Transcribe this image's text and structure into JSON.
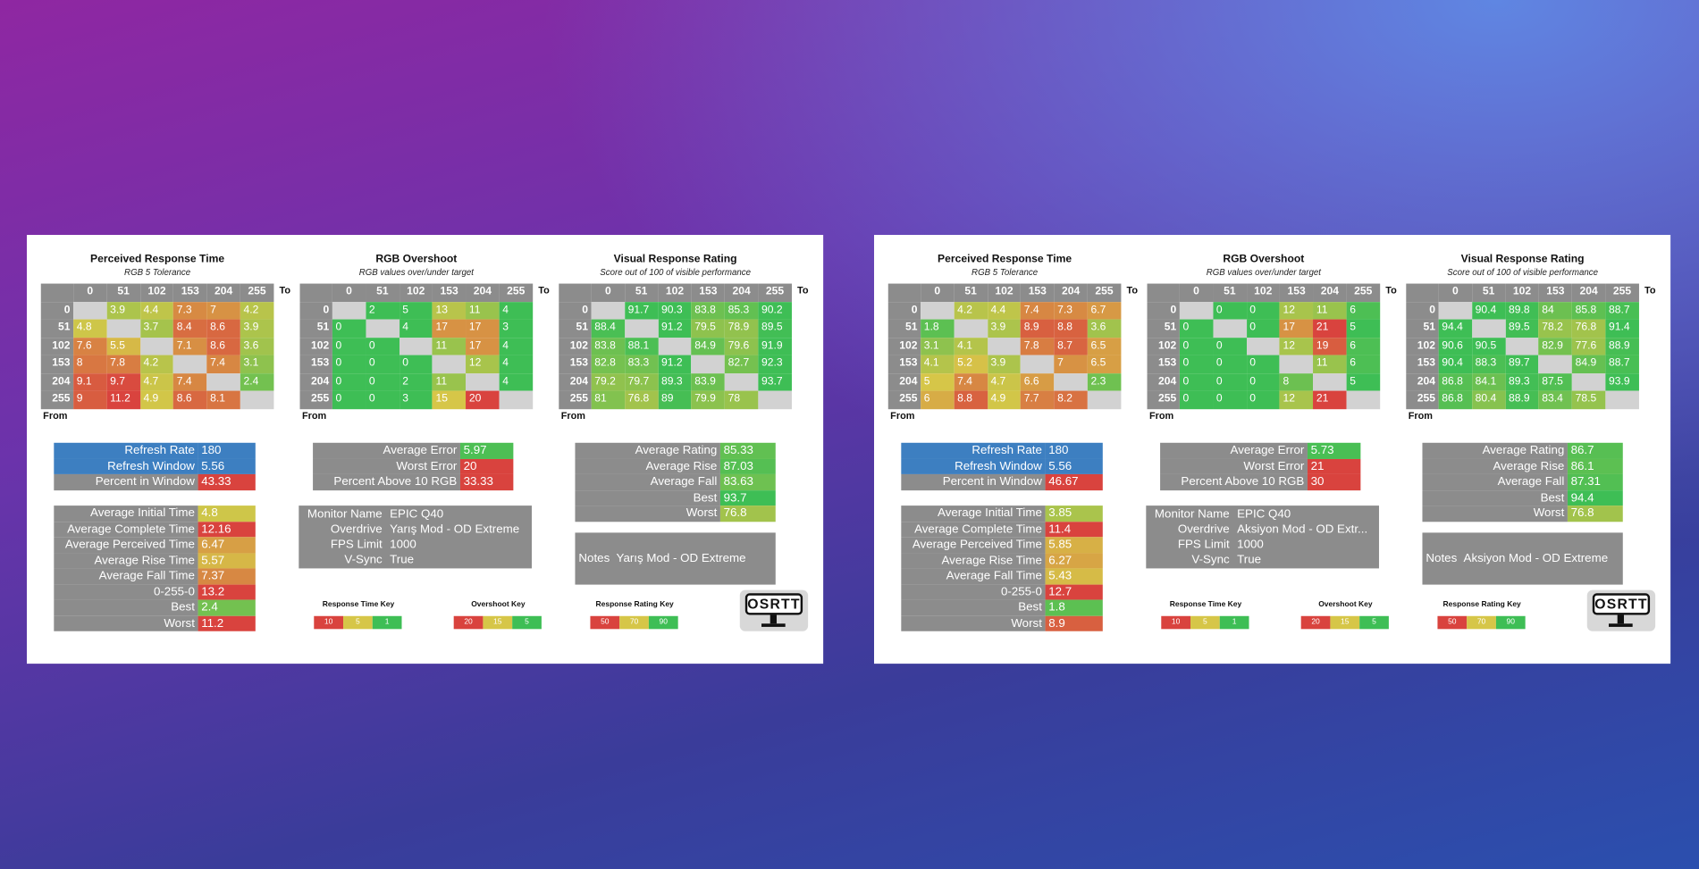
{
  "panels": [
    {
      "tables": [
        {
          "title": "Perceived Response Time",
          "subtitle": "RGB 5 Tolerance",
          "columns": [
            0,
            51,
            102,
            153,
            204,
            255
          ],
          "rows": [
            0,
            51,
            102,
            153,
            204,
            255
          ],
          "to": "To",
          "from": "From",
          "cells": [
            [
              null,
              3.9,
              4.4,
              7.3,
              7,
              4.2
            ],
            [
              4.8,
              null,
              3.7,
              8.4,
              8.6,
              3.9
            ],
            [
              7.6,
              5.5,
              null,
              7.1,
              8.6,
              3.6
            ],
            [
              8,
              7.8,
              4.2,
              null,
              7.4,
              3.1
            ],
            [
              9.1,
              9.7,
              4.7,
              7.4,
              null,
              2.4
            ],
            [
              9,
              11.2,
              4.9,
              8.6,
              8.1,
              null
            ]
          ]
        },
        {
          "title": "RGB Overshoot",
          "subtitle": "RGB values over/under target",
          "columns": [
            0,
            51,
            102,
            153,
            204,
            255
          ],
          "rows": [
            0,
            51,
            102,
            153,
            204,
            255
          ],
          "to": "To",
          "from": "From",
          "cells": [
            [
              null,
              2,
              5,
              13,
              11,
              4
            ],
            [
              0,
              null,
              4,
              17,
              17,
              3
            ],
            [
              0,
              0,
              null,
              11,
              17,
              4
            ],
            [
              0,
              0,
              0,
              null,
              12,
              4
            ],
            [
              0,
              0,
              2,
              11,
              null,
              4
            ],
            [
              0,
              0,
              3,
              15,
              20,
              null
            ]
          ]
        },
        {
          "title": "Visual Response Rating",
          "subtitle": "Score out of 100 of visible performance",
          "columns": [
            0,
            51,
            102,
            153,
            204,
            255
          ],
          "rows": [
            0,
            51,
            102,
            153,
            204,
            255
          ],
          "to": "To",
          "from": "From",
          "cells": [
            [
              null,
              91.7,
              90.3,
              83.8,
              85.3,
              90.2
            ],
            [
              88.4,
              null,
              91.2,
              79.5,
              78.9,
              89.5
            ],
            [
              83.8,
              88.1,
              null,
              84.9,
              79.6,
              91.9
            ],
            [
              82.8,
              83.3,
              91.2,
              null,
              82.7,
              92.3
            ],
            [
              79.2,
              79.7,
              89.3,
              83.9,
              null,
              93.7
            ],
            [
              81,
              76.8,
              89,
              79.9,
              78,
              null
            ]
          ]
        }
      ],
      "refresh": [
        {
          "label": "Refresh Rate",
          "value": 180
        },
        {
          "label": "Refresh Window",
          "value": 5.56
        },
        {
          "label": "Percent in Window",
          "value": 43.33
        }
      ],
      "error": [
        {
          "label": "Average Error",
          "value": 5.97
        },
        {
          "label": "Worst Error",
          "value": 20
        },
        {
          "label": "Percent Above 10 RGB",
          "value": 33.33
        }
      ],
      "rating": [
        {
          "label": "Average Rating",
          "value": 85.33
        },
        {
          "label": "Average Rise",
          "value": 87.03
        },
        {
          "label": "Average Fall",
          "value": 83.63
        },
        {
          "label": "Best",
          "value": 93.7
        },
        {
          "label": "Worst",
          "value": 76.8
        }
      ],
      "times": [
        {
          "label": "Average Initial Time",
          "value": 4.8
        },
        {
          "label": "Average Complete Time",
          "value": 12.16
        },
        {
          "label": "Average Perceived Time",
          "value": 6.47
        },
        {
          "label": "Average Rise Time",
          "value": 5.57
        },
        {
          "label": "Average Fall Time",
          "value": 7.37
        },
        {
          "label": "0-255-0",
          "value": 13.2
        },
        {
          "label": "Best",
          "value": 2.4
        },
        {
          "label": "Worst",
          "value": 11.2
        }
      ],
      "monitor": [
        {
          "label": "Monitor Name",
          "value": "EPIC Q40"
        },
        {
          "label": "Overdrive",
          "value": "Yarış Mod - OD Extreme"
        },
        {
          "label": "FPS Limit",
          "value": 1000
        },
        {
          "label": "V-Sync",
          "value": "True"
        }
      ],
      "notes": {
        "label": "Notes",
        "value": "Yarış Mod - OD Extreme"
      },
      "keys": [
        {
          "title": "Response Time Key",
          "values": [
            10,
            5,
            1
          ]
        },
        {
          "title": "Overshoot Key",
          "values": [
            20,
            15,
            5
          ]
        },
        {
          "title": "Response Rating Key",
          "values": [
            50,
            70,
            90
          ]
        }
      ],
      "logo": "OSRTT"
    },
    {
      "tables": [
        {
          "title": "Perceived Response Time",
          "subtitle": "RGB 5 Tolerance",
          "columns": [
            0,
            51,
            102,
            153,
            204,
            255
          ],
          "rows": [
            0,
            51,
            102,
            153,
            204,
            255
          ],
          "to": "To",
          "from": "From",
          "cells": [
            [
              null,
              4.2,
              4.4,
              7.4,
              7.3,
              6.7
            ],
            [
              1.8,
              null,
              3.9,
              8.9,
              8.8,
              3.6
            ],
            [
              3.1,
              4.1,
              null,
              7.8,
              8.7,
              6.5
            ],
            [
              4.1,
              5.2,
              3.9,
              null,
              7,
              6.5
            ],
            [
              5,
              7.4,
              4.7,
              6.6,
              null,
              2.3
            ],
            [
              6,
              8.8,
              4.9,
              7.7,
              8.2,
              null
            ]
          ]
        },
        {
          "title": "RGB Overshoot",
          "subtitle": "RGB values over/under target",
          "columns": [
            0,
            51,
            102,
            153,
            204,
            255
          ],
          "rows": [
            0,
            51,
            102,
            153,
            204,
            255
          ],
          "to": "To",
          "from": "From",
          "cells": [
            [
              null,
              0,
              0,
              12,
              11,
              6
            ],
            [
              0,
              null,
              0,
              17,
              21,
              5
            ],
            [
              0,
              0,
              null,
              12,
              19,
              6
            ],
            [
              0,
              0,
              0,
              null,
              11,
              6
            ],
            [
              0,
              0,
              0,
              8,
              null,
              5
            ],
            [
              0,
              0,
              0,
              12,
              21,
              null
            ]
          ]
        },
        {
          "title": "Visual Response Rating",
          "subtitle": "Score out of 100 of visible performance",
          "columns": [
            0,
            51,
            102,
            153,
            204,
            255
          ],
          "rows": [
            0,
            51,
            102,
            153,
            204,
            255
          ],
          "to": "To",
          "from": "From",
          "cells": [
            [
              null,
              90.4,
              89.8,
              84,
              85.8,
              88.7
            ],
            [
              94.4,
              null,
              89.5,
              78.2,
              76.8,
              91.4
            ],
            [
              90.6,
              90.5,
              null,
              82.9,
              77.6,
              88.9
            ],
            [
              90.4,
              88.3,
              89.7,
              null,
              84.9,
              88.7
            ],
            [
              86.8,
              84.1,
              89.3,
              87.5,
              null,
              93.9
            ],
            [
              86.8,
              80.4,
              88.9,
              83.4,
              78.5,
              null
            ]
          ]
        }
      ],
      "refresh": [
        {
          "label": "Refresh Rate",
          "value": 180
        },
        {
          "label": "Refresh Window",
          "value": 5.56
        },
        {
          "label": "Percent in Window",
          "value": 46.67
        }
      ],
      "error": [
        {
          "label": "Average Error",
          "value": 5.73
        },
        {
          "label": "Worst Error",
          "value": 21
        },
        {
          "label": "Percent Above 10 RGB",
          "value": 30
        }
      ],
      "rating": [
        {
          "label": "Average Rating",
          "value": 86.7
        },
        {
          "label": "Average Rise",
          "value": 86.1
        },
        {
          "label": "Average Fall",
          "value": 87.31
        },
        {
          "label": "Best",
          "value": 94.4
        },
        {
          "label": "Worst",
          "value": 76.8
        }
      ],
      "times": [
        {
          "label": "Average Initial Time",
          "value": 3.85
        },
        {
          "label": "Average Complete Time",
          "value": 11.4
        },
        {
          "label": "Average Perceived Time",
          "value": 5.85
        },
        {
          "label": "Average Rise Time",
          "value": 6.27
        },
        {
          "label": "Average Fall Time",
          "value": 5.43
        },
        {
          "label": "0-255-0",
          "value": 12.7
        },
        {
          "label": "Best",
          "value": 1.8
        },
        {
          "label": "Worst",
          "value": 8.9
        }
      ],
      "monitor": [
        {
          "label": "Monitor Name",
          "value": "EPIC Q40"
        },
        {
          "label": "Overdrive",
          "value": "Aksiyon Mod - OD Extr..."
        },
        {
          "label": "FPS Limit",
          "value": 1000
        },
        {
          "label": "V-Sync",
          "value": "True"
        }
      ],
      "notes": {
        "label": "Notes",
        "value": "Aksiyon Mod - OD Extreme"
      },
      "keys": [
        {
          "title": "Response Time Key",
          "values": [
            10,
            5,
            1
          ]
        },
        {
          "title": "Overshoot Key",
          "values": [
            20,
            15,
            5
          ]
        },
        {
          "title": "Response Rating Key",
          "values": [
            50,
            70,
            90
          ]
        }
      ],
      "logo": "OSRTT"
    }
  ]
}
